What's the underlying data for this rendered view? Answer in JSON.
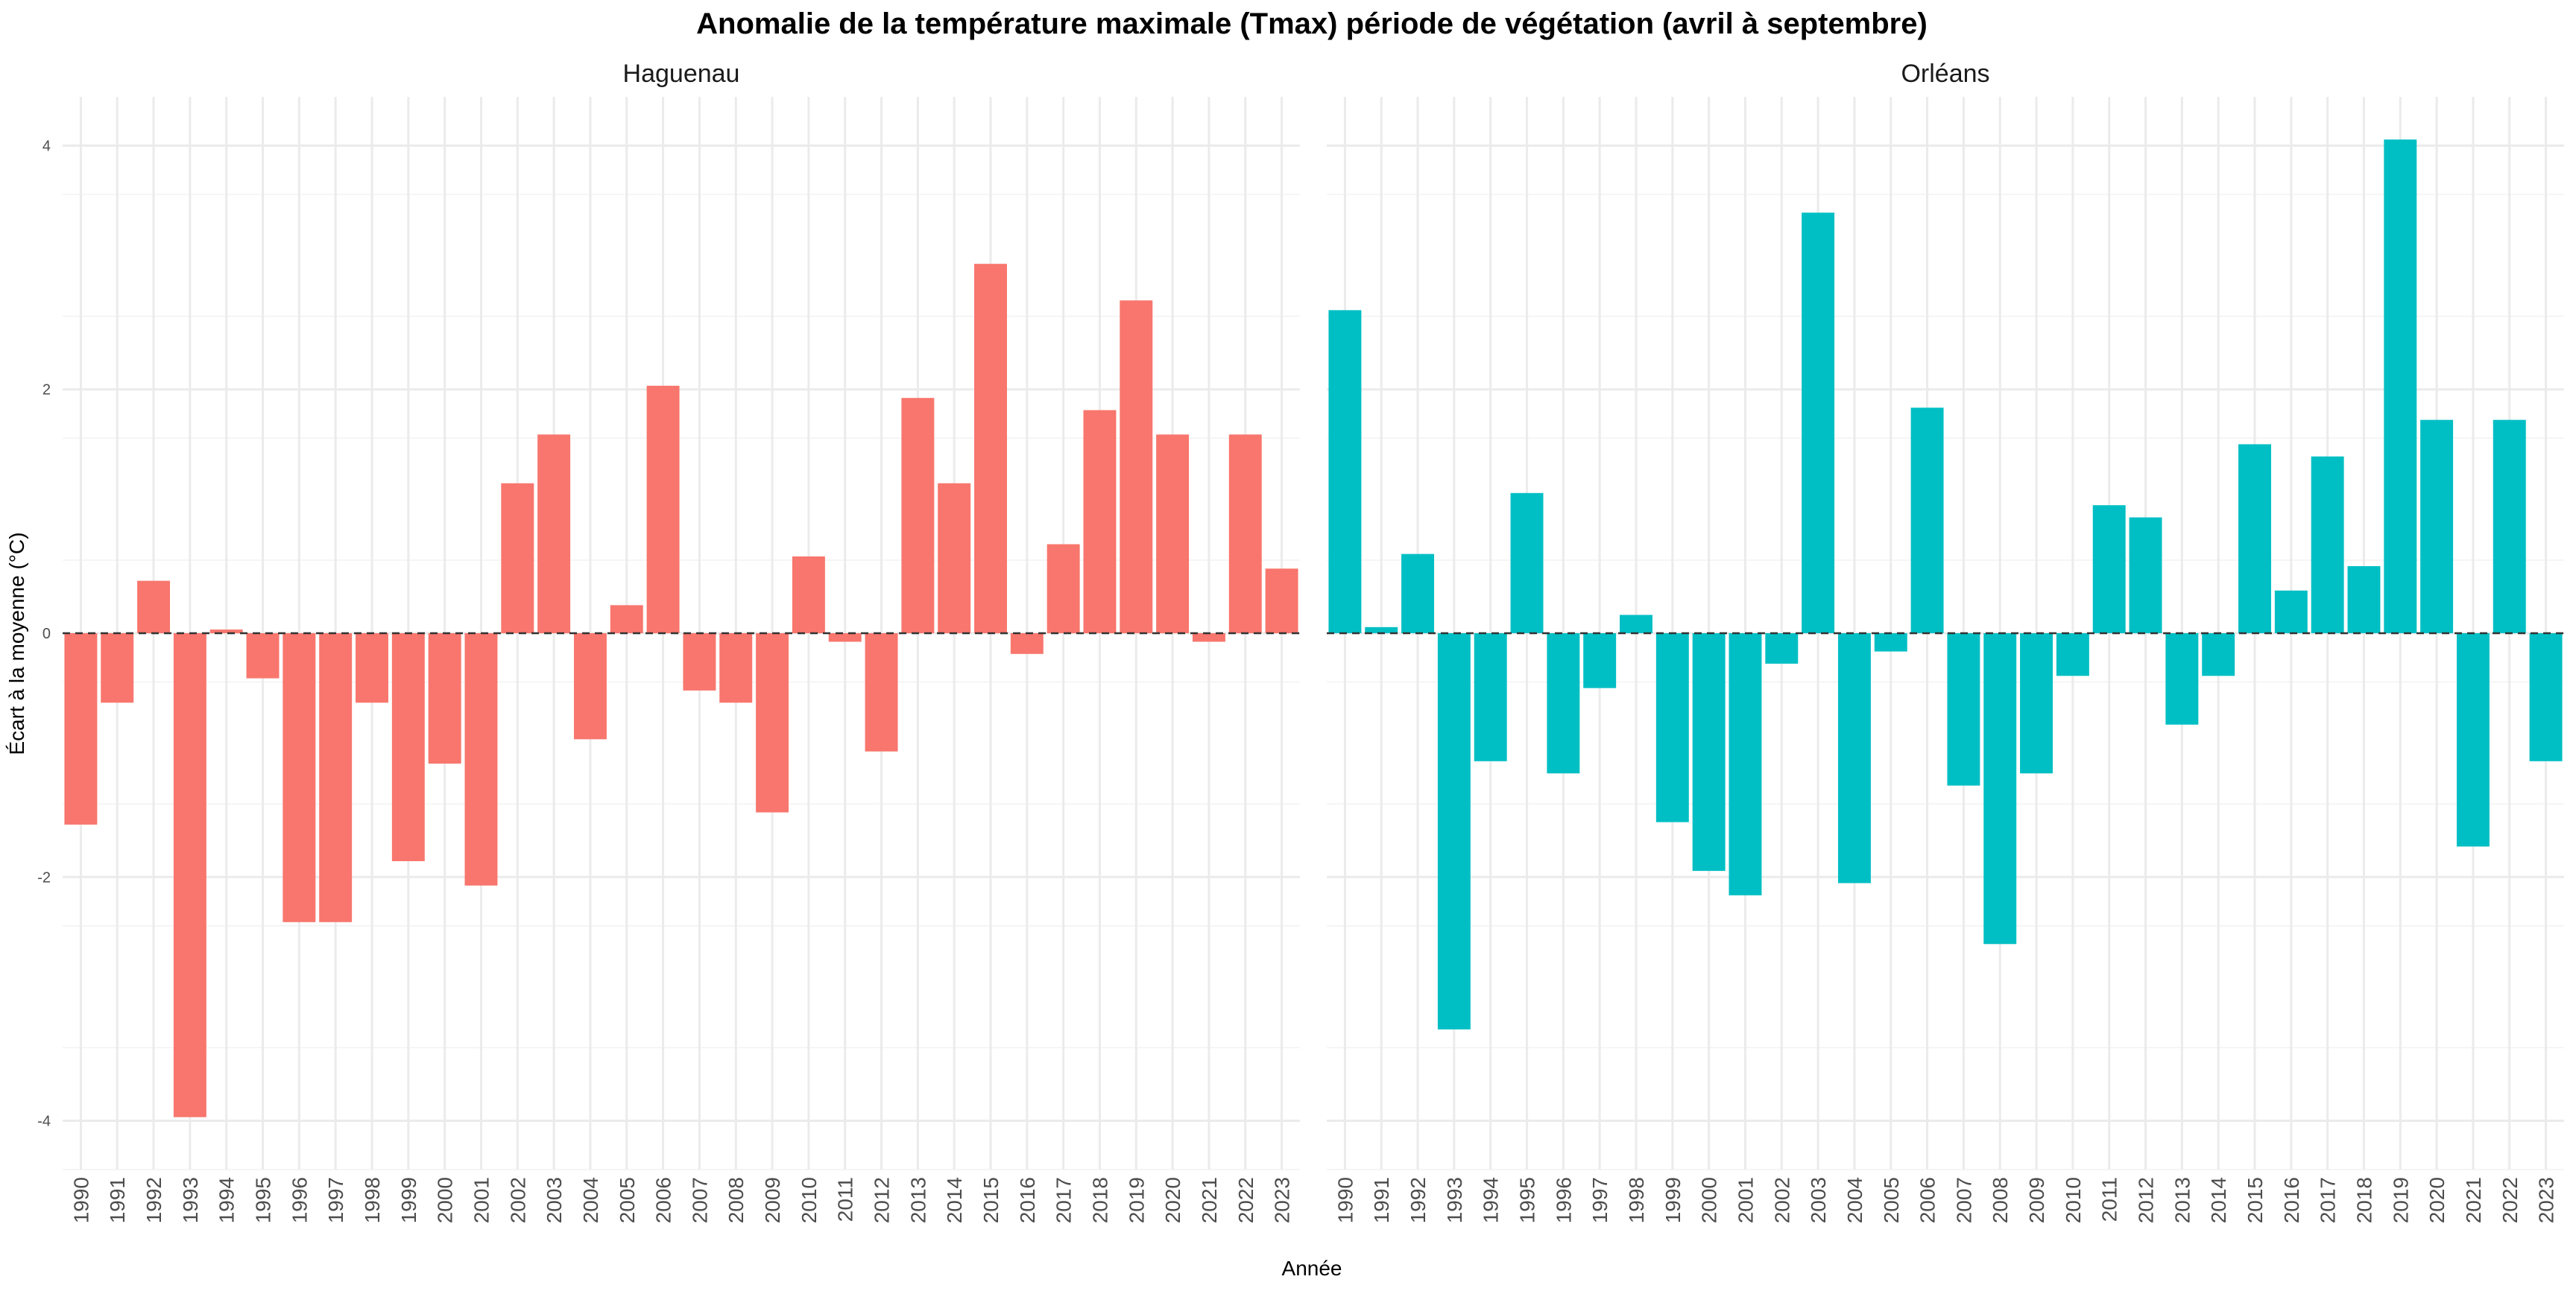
{
  "chart_data": {
    "type": "bar",
    "title": "Anomalie de la température maximale (Tmax) période de végétation (avril à septembre)",
    "xlabel": "Année",
    "ylabel": "Écart à la moyenne (°C)",
    "ylim": [
      -4.4,
      4.4
    ],
    "yticks": [
      -4,
      -2,
      0,
      2,
      4
    ],
    "grid": true,
    "reference_line": 0,
    "categories": [
      "1990",
      "1991",
      "1992",
      "1993",
      "1994",
      "1995",
      "1996",
      "1997",
      "1998",
      "1999",
      "2000",
      "2001",
      "2002",
      "2003",
      "2004",
      "2005",
      "2006",
      "2007",
      "2008",
      "2009",
      "2010",
      "2011",
      "2012",
      "2013",
      "2014",
      "2015",
      "2016",
      "2017",
      "2018",
      "2019",
      "2020",
      "2021",
      "2022",
      "2023"
    ],
    "panels": [
      {
        "strip": "Haguenau",
        "color": "#F8766D",
        "values": [
          -1.57,
          -0.57,
          0.43,
          -3.97,
          0.03,
          -0.37,
          -2.37,
          -2.37,
          -0.57,
          -1.87,
          -1.07,
          -2.07,
          1.23,
          1.63,
          -0.87,
          0.23,
          2.03,
          -0.47,
          -0.57,
          -1.47,
          0.63,
          -0.07,
          -0.97,
          1.93,
          1.23,
          3.03,
          -0.17,
          0.73,
          1.83,
          2.73,
          1.63,
          -0.07,
          1.63,
          0.53
        ]
      },
      {
        "strip": "Orléans",
        "color": "#00BFC4",
        "values": [
          2.65,
          0.05,
          0.65,
          -3.25,
          -1.05,
          1.15,
          -1.15,
          -0.45,
          0.15,
          -1.55,
          -1.95,
          -2.15,
          -0.25,
          3.45,
          -2.05,
          -0.15,
          1.85,
          -1.25,
          -2.55,
          -1.15,
          -0.35,
          1.05,
          0.95,
          -0.75,
          -0.35,
          1.55,
          0.35,
          1.45,
          0.55,
          4.05,
          1.75,
          -1.75,
          1.75,
          -1.05
        ]
      }
    ]
  }
}
